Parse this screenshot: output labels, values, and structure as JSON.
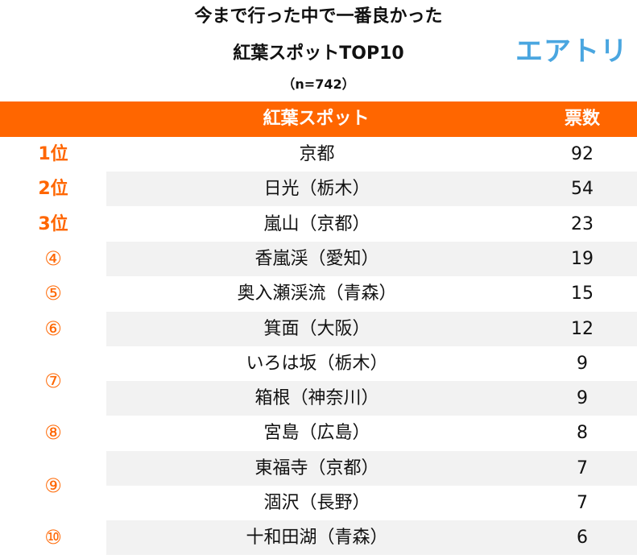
{
  "title": {
    "line1": "今まで行った中で一番良かった",
    "line2": "紅葉スポットTOP10",
    "line3": "（n=742）"
  },
  "brand": "エアトリ",
  "colors": {
    "accent": "#ff6600",
    "brand": "#4aa6e0",
    "shade": "#f2f2f2"
  },
  "chart_data": {
    "type": "table",
    "title": "今まで行った中で一番良かった紅葉スポットTOP10",
    "subtitle": "（n=742）",
    "columns": [
      "紅葉スポット",
      "票数"
    ],
    "categories": [
      "京都",
      "日光（栃木）",
      "嵐山（京都）",
      "香嵐渓（愛知）",
      "奥入瀬渓流（青森）",
      "箕面（大阪）",
      "いろは坂（栃木）",
      "箱根（神奈川）",
      "宮島（広島）",
      "東福寺（京都）",
      "涸沢（長野）",
      "十和田湖（青森）"
    ],
    "values": [
      92,
      54,
      23,
      19,
      15,
      12,
      9,
      9,
      8,
      7,
      7,
      6
    ],
    "ranks": [
      "1位",
      "2位",
      "3位",
      "④",
      "⑤",
      "⑥",
      "⑦",
      "⑧",
      "⑨",
      "⑩"
    ]
  }
}
